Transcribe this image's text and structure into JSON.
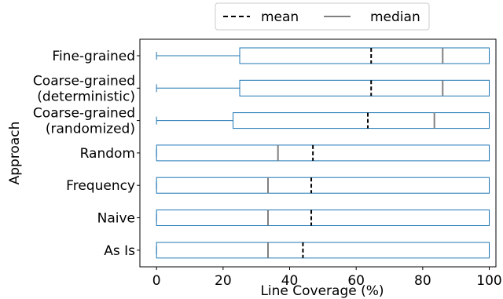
{
  "chart_data": {
    "type": "boxplot",
    "orientation": "horizontal",
    "xlabel": "Line Coverage (%)",
    "ylabel": "Approach",
    "xlim": [
      -5,
      102
    ],
    "xticks": [
      "0",
      "20",
      "40",
      "60",
      "80",
      "100"
    ],
    "grid": false,
    "legend": {
      "placement": "top-center, outside plot",
      "entries": [
        {
          "label": "mean",
          "style": "dashed",
          "color": "#000000"
        },
        {
          "label": "median",
          "style": "solid",
          "color": "#808080"
        }
      ]
    },
    "colors": {
      "box": "#1f77b4",
      "mean": "#000000",
      "median": "#808080"
    },
    "approaches": [
      {
        "label_lines": [
          "Fine-grained"
        ],
        "whisker_low": 0,
        "q1": 25,
        "median": 86,
        "mean": 64.5,
        "q3": 100,
        "whisker_high": 100
      },
      {
        "label_lines": [
          "Coarse-grained",
          "(deterministic)"
        ],
        "whisker_low": 0,
        "q1": 25,
        "median": 86,
        "mean": 64.5,
        "q3": 100,
        "whisker_high": 100
      },
      {
        "label_lines": [
          "Coarse-grained",
          "(randomized)"
        ],
        "whisker_low": 0,
        "q1": 23,
        "median": 83.5,
        "mean": 63.5,
        "q3": 100,
        "whisker_high": 100
      },
      {
        "label_lines": [
          "Random"
        ],
        "whisker_low": 0,
        "q1": 0,
        "median": 36.5,
        "mean": 47,
        "q3": 100,
        "whisker_high": 100
      },
      {
        "label_lines": [
          "Frequency"
        ],
        "whisker_low": 0,
        "q1": 0,
        "median": 33.5,
        "mean": 46.5,
        "q3": 100,
        "whisker_high": 100
      },
      {
        "label_lines": [
          "Naive"
        ],
        "whisker_low": 0,
        "q1": 0,
        "median": 33.5,
        "mean": 46.5,
        "q3": 100,
        "whisker_high": 100
      },
      {
        "label_lines": [
          "As Is"
        ],
        "whisker_low": 0,
        "q1": 0,
        "median": 33.5,
        "mean": 44,
        "q3": 100,
        "whisker_high": 100
      }
    ]
  }
}
